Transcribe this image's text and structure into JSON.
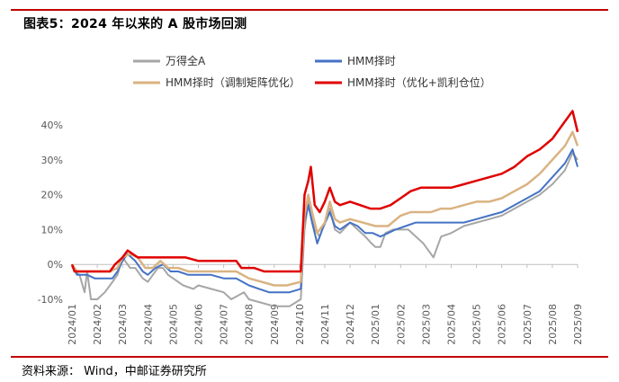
{
  "header": {
    "title": "图表5：2024 年以来的 A 股市场回测"
  },
  "footer": {
    "source": "资料来源：  Wind，中邮证券研究所"
  },
  "chart_data": {
    "type": "line",
    "title": "图表5：2024 年以来的 A 股市场回测",
    "xlabel": "",
    "ylabel": "",
    "ylim": [
      -10,
      45
    ],
    "y_ticks": [
      "40%",
      "30%",
      "20%",
      "10%",
      "0%",
      "-10%"
    ],
    "y_tick_values": [
      40,
      30,
      20,
      10,
      0,
      -10
    ],
    "x_tick_labels": [
      "2024/01",
      "2024/02",
      "2024/03",
      "2024/04",
      "2024/05",
      "2024/06",
      "2024/07",
      "2024/08",
      "2024/09",
      "2024/10",
      "2024/11",
      "2024/12",
      "2025/01",
      "2025/02",
      "2025/03",
      "2025/04",
      "2025/05",
      "2025/06",
      "2025/07",
      "2025/08",
      "2025/09"
    ],
    "grid": false,
    "legend_position": "top",
    "series": [
      {
        "name": "万得全A",
        "color": "#a6a6a6",
        "points": [
          [
            0,
            0
          ],
          [
            0.1,
            -2
          ],
          [
            0.3,
            -3
          ],
          [
            0.5,
            -8
          ],
          [
            0.6,
            -2
          ],
          [
            0.75,
            -10
          ],
          [
            1.0,
            -10
          ],
          [
            1.3,
            -8
          ],
          [
            1.5,
            -6
          ],
          [
            1.8,
            -3
          ],
          [
            2.0,
            2
          ],
          [
            2.3,
            -1
          ],
          [
            2.5,
            -1
          ],
          [
            2.8,
            -4
          ],
          [
            3.0,
            -5
          ],
          [
            3.2,
            -3
          ],
          [
            3.4,
            -1
          ],
          [
            3.6,
            -1
          ],
          [
            3.8,
            -3
          ],
          [
            4.0,
            -4
          ],
          [
            4.4,
            -6
          ],
          [
            4.8,
            -7
          ],
          [
            5.0,
            -6
          ],
          [
            5.5,
            -7
          ],
          [
            6.0,
            -8
          ],
          [
            6.3,
            -10
          ],
          [
            6.8,
            -8
          ],
          [
            7.0,
            -10
          ],
          [
            7.5,
            -11
          ],
          [
            8.0,
            -12
          ],
          [
            8.6,
            -12
          ],
          [
            9.05,
            -10
          ],
          [
            9.2,
            10
          ],
          [
            9.35,
            18
          ],
          [
            9.45,
            14
          ],
          [
            9.6,
            10
          ],
          [
            9.8,
            8
          ],
          [
            10.0,
            12
          ],
          [
            10.2,
            16
          ],
          [
            10.4,
            10
          ],
          [
            10.6,
            9
          ],
          [
            11.0,
            12
          ],
          [
            11.3,
            10
          ],
          [
            11.6,
            8
          ],
          [
            11.85,
            6
          ],
          [
            12.0,
            5
          ],
          [
            12.2,
            5
          ],
          [
            12.4,
            9
          ],
          [
            12.7,
            10
          ],
          [
            13.0,
            10
          ],
          [
            13.3,
            10
          ],
          [
            13.6,
            8
          ],
          [
            13.9,
            6
          ],
          [
            14.1,
            4
          ],
          [
            14.3,
            2
          ],
          [
            14.45,
            5
          ],
          [
            14.6,
            8
          ],
          [
            15.0,
            9
          ],
          [
            15.5,
            11
          ],
          [
            16.0,
            12
          ],
          [
            16.5,
            13
          ],
          [
            17.0,
            14
          ],
          [
            17.5,
            16
          ],
          [
            18.0,
            18
          ],
          [
            18.5,
            20
          ],
          [
            19.0,
            23
          ],
          [
            19.5,
            27
          ],
          [
            19.8,
            32
          ],
          [
            20.0,
            30
          ]
        ]
      },
      {
        "name": "HMM择时",
        "color": "#4472c4",
        "points": [
          [
            0,
            0
          ],
          [
            0.2,
            -3
          ],
          [
            0.6,
            -3
          ],
          [
            0.9,
            -4
          ],
          [
            1.2,
            -4
          ],
          [
            1.6,
            -4
          ],
          [
            1.8,
            -2
          ],
          [
            2.0,
            1
          ],
          [
            2.2,
            3
          ],
          [
            2.5,
            1
          ],
          [
            2.8,
            -2
          ],
          [
            3.0,
            -3
          ],
          [
            3.3,
            -1
          ],
          [
            3.6,
            0
          ],
          [
            3.9,
            -2
          ],
          [
            4.2,
            -2
          ],
          [
            4.6,
            -3
          ],
          [
            5.0,
            -3
          ],
          [
            5.5,
            -3
          ],
          [
            6.0,
            -4
          ],
          [
            6.5,
            -4
          ],
          [
            7.0,
            -6
          ],
          [
            7.4,
            -7
          ],
          [
            7.8,
            -8
          ],
          [
            8.2,
            -8
          ],
          [
            8.6,
            -8
          ],
          [
            9.05,
            -7
          ],
          [
            9.2,
            12
          ],
          [
            9.35,
            17
          ],
          [
            9.5,
            12
          ],
          [
            9.7,
            6
          ],
          [
            9.9,
            10
          ],
          [
            10.2,
            15
          ],
          [
            10.4,
            11
          ],
          [
            10.6,
            10
          ],
          [
            11.0,
            12
          ],
          [
            11.3,
            11
          ],
          [
            11.6,
            9
          ],
          [
            11.9,
            9
          ],
          [
            12.2,
            8
          ],
          [
            12.5,
            9
          ],
          [
            12.8,
            10
          ],
          [
            13.2,
            11
          ],
          [
            13.6,
            12
          ],
          [
            14.0,
            12
          ],
          [
            14.5,
            12
          ],
          [
            15.0,
            12
          ],
          [
            15.5,
            12
          ],
          [
            16.0,
            13
          ],
          [
            16.5,
            14
          ],
          [
            17.0,
            15
          ],
          [
            17.5,
            17
          ],
          [
            18.0,
            19
          ],
          [
            18.5,
            21
          ],
          [
            19.0,
            25
          ],
          [
            19.5,
            29
          ],
          [
            19.8,
            33
          ],
          [
            20.0,
            28
          ]
        ]
      },
      {
        "name": "HMM择时（调制矩阵优化）",
        "color": "#d9b382",
        "points": [
          [
            0,
            0
          ],
          [
            0.2,
            -2
          ],
          [
            0.6,
            -2
          ],
          [
            1.0,
            -2
          ],
          [
            1.5,
            -2
          ],
          [
            1.8,
            -1
          ],
          [
            2.0,
            2
          ],
          [
            2.3,
            3
          ],
          [
            2.6,
            2
          ],
          [
            2.9,
            -1
          ],
          [
            3.2,
            -1
          ],
          [
            3.5,
            1
          ],
          [
            3.8,
            -1
          ],
          [
            4.2,
            -1
          ],
          [
            4.6,
            -2
          ],
          [
            5.0,
            -2
          ],
          [
            5.5,
            -2
          ],
          [
            6.0,
            -2
          ],
          [
            6.5,
            -2
          ],
          [
            7.0,
            -4
          ],
          [
            7.5,
            -5
          ],
          [
            8.0,
            -6
          ],
          [
            8.5,
            -6
          ],
          [
            9.05,
            -5
          ],
          [
            9.2,
            14
          ],
          [
            9.35,
            20
          ],
          [
            9.5,
            15
          ],
          [
            9.7,
            9
          ],
          [
            10.0,
            12
          ],
          [
            10.2,
            18
          ],
          [
            10.4,
            13
          ],
          [
            10.6,
            12
          ],
          [
            11.0,
            13
          ],
          [
            11.5,
            12
          ],
          [
            12.0,
            11
          ],
          [
            12.5,
            11
          ],
          [
            13.0,
            14
          ],
          [
            13.4,
            15
          ],
          [
            13.8,
            15
          ],
          [
            14.2,
            15
          ],
          [
            14.6,
            16
          ],
          [
            15.0,
            16
          ],
          [
            15.5,
            17
          ],
          [
            16.0,
            18
          ],
          [
            16.5,
            18
          ],
          [
            17.0,
            19
          ],
          [
            17.5,
            21
          ],
          [
            18.0,
            23
          ],
          [
            18.5,
            26
          ],
          [
            19.0,
            30
          ],
          [
            19.5,
            34
          ],
          [
            19.8,
            38
          ],
          [
            20.0,
            34
          ]
        ]
      },
      {
        "name": "HMM择时（优化+凯利仓位）",
        "color": "#e00000",
        "points": [
          [
            0,
            0
          ],
          [
            0.1,
            -2
          ],
          [
            0.6,
            -2
          ],
          [
            1.0,
            -2
          ],
          [
            1.5,
            -2
          ],
          [
            1.7,
            0
          ],
          [
            2.0,
            2
          ],
          [
            2.2,
            4
          ],
          [
            2.6,
            2
          ],
          [
            2.9,
            2
          ],
          [
            3.5,
            2
          ],
          [
            4.0,
            2
          ],
          [
            4.5,
            2
          ],
          [
            5.0,
            1
          ],
          [
            5.5,
            1
          ],
          [
            6.0,
            1
          ],
          [
            6.5,
            1
          ],
          [
            6.7,
            -1
          ],
          [
            7.2,
            -1
          ],
          [
            7.6,
            -2
          ],
          [
            8.2,
            -2
          ],
          [
            8.7,
            -2
          ],
          [
            9.05,
            -2
          ],
          [
            9.2,
            20
          ],
          [
            9.35,
            24
          ],
          [
            9.45,
            28
          ],
          [
            9.6,
            17
          ],
          [
            9.8,
            15
          ],
          [
            10.0,
            18
          ],
          [
            10.2,
            22
          ],
          [
            10.4,
            18
          ],
          [
            10.6,
            17
          ],
          [
            11.0,
            18
          ],
          [
            11.4,
            17
          ],
          [
            11.8,
            16
          ],
          [
            12.2,
            16
          ],
          [
            12.6,
            17
          ],
          [
            13.0,
            19
          ],
          [
            13.4,
            21
          ],
          [
            13.8,
            22
          ],
          [
            14.2,
            22
          ],
          [
            14.6,
            22
          ],
          [
            15.0,
            22
          ],
          [
            15.5,
            23
          ],
          [
            16.0,
            24
          ],
          [
            16.5,
            25
          ],
          [
            17.0,
            26
          ],
          [
            17.5,
            28
          ],
          [
            18.0,
            31
          ],
          [
            18.5,
            33
          ],
          [
            19.0,
            36
          ],
          [
            19.5,
            41
          ],
          [
            19.8,
            44
          ],
          [
            20.0,
            38
          ]
        ]
      }
    ]
  }
}
